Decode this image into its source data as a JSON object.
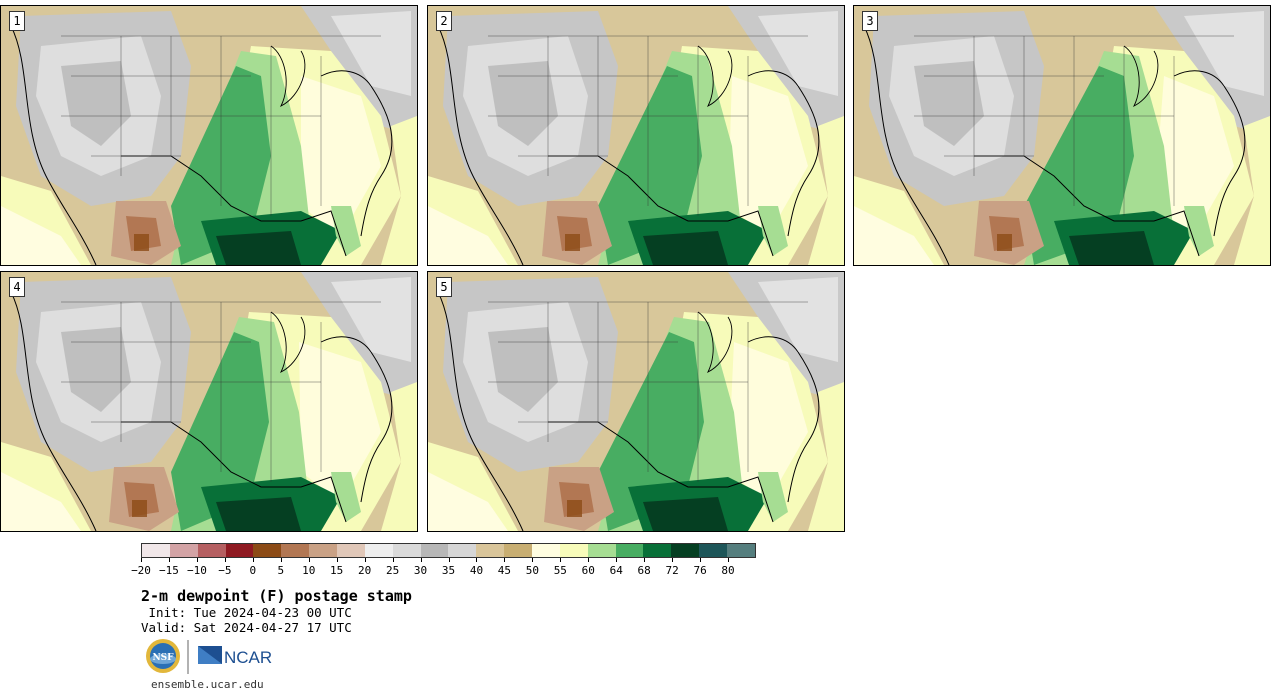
{
  "panels": [
    {
      "label": "1"
    },
    {
      "label": "2"
    },
    {
      "label": "3"
    },
    {
      "label": "4"
    },
    {
      "label": "5"
    }
  ],
  "colorbar": {
    "colors": [
      "#f1e7e9",
      "#d3a3a5",
      "#b55f61",
      "#8f1a22",
      "#8c4b16",
      "#b27753",
      "#c9a185",
      "#e0c7b8",
      "#eeeeee",
      "#dadada",
      "#b7b7b7",
      "#d6d6d6",
      "#d9c59a",
      "#c8ae72",
      "#fffde0",
      "#f7fbba",
      "#a6dd93",
      "#48ad62",
      "#087038",
      "#053f22",
      "#1e5659",
      "#557e7e"
    ],
    "tick_labels": [
      "−20",
      "−15",
      "−10",
      "−5",
      "0",
      "5",
      "10",
      "15",
      "20",
      "25",
      "30",
      "35",
      "40",
      "45",
      "50",
      "55",
      "60",
      "64",
      "68",
      "72",
      "76",
      "80"
    ]
  },
  "title": "2-m dewpoint (F) postage stamp",
  "init_line": " Init: Tue 2024-04-23 00 UTC",
  "valid_line": "Valid: Sat 2024-04-27 17 UTC",
  "logos": {
    "nsf": "NSF",
    "ncar": "NCAR"
  },
  "website": "ensemble.ucar.edu"
}
